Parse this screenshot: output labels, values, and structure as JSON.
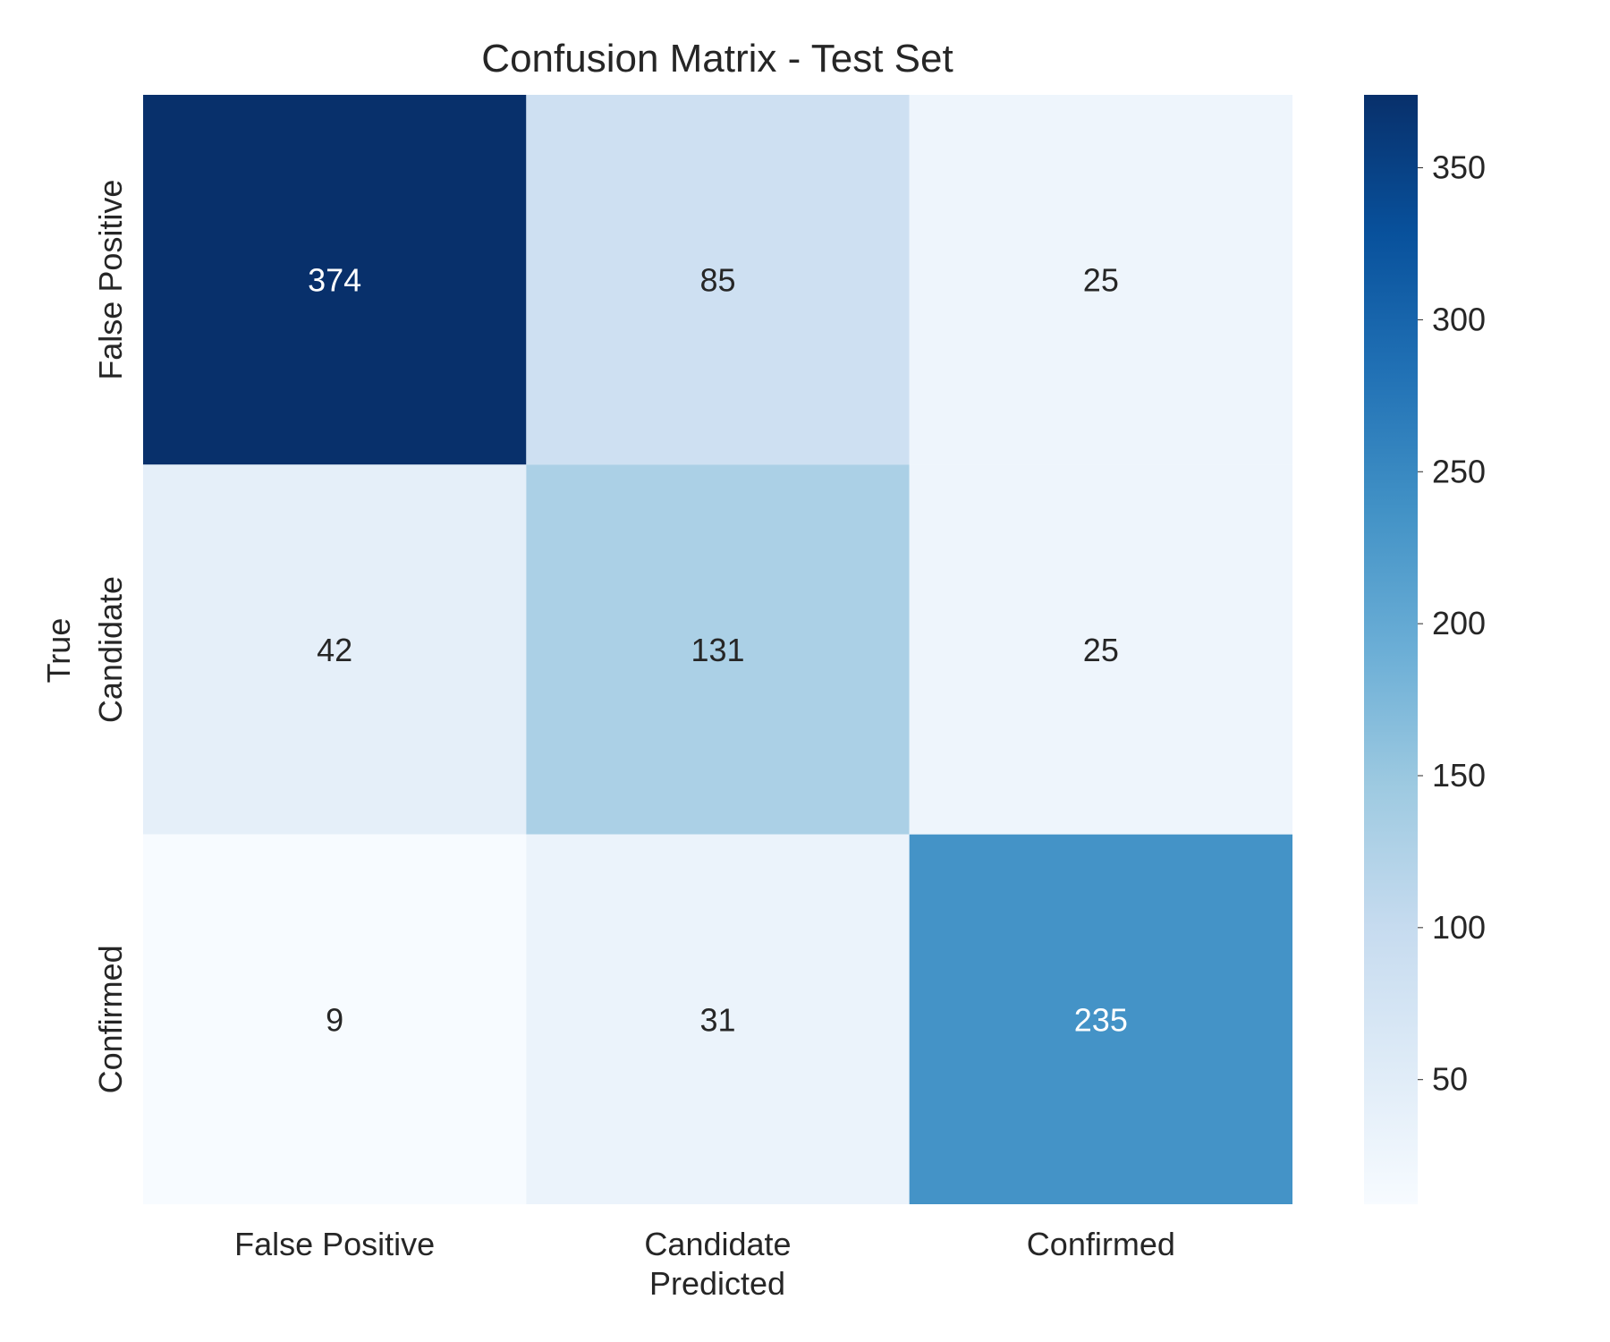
{
  "chart_data": {
    "type": "heatmap",
    "title": "Confusion Matrix - Test Set",
    "xlabel": "Predicted",
    "ylabel": "True",
    "x_categories": [
      "False Positive",
      "Candidate",
      "Confirmed"
    ],
    "y_categories": [
      "False Positive",
      "Candidate",
      "Confirmed"
    ],
    "values": [
      [
        374,
        85,
        25
      ],
      [
        42,
        131,
        25
      ],
      [
        9,
        31,
        235
      ]
    ],
    "colormap": "Blues",
    "value_range": [
      9,
      374
    ],
    "colorbar": {
      "ticks": [
        50,
        100,
        150,
        200,
        250,
        300,
        350
      ],
      "tick_labels": [
        "50",
        "100",
        "150",
        "200",
        "250",
        "300",
        "350"
      ]
    },
    "grid": false
  }
}
